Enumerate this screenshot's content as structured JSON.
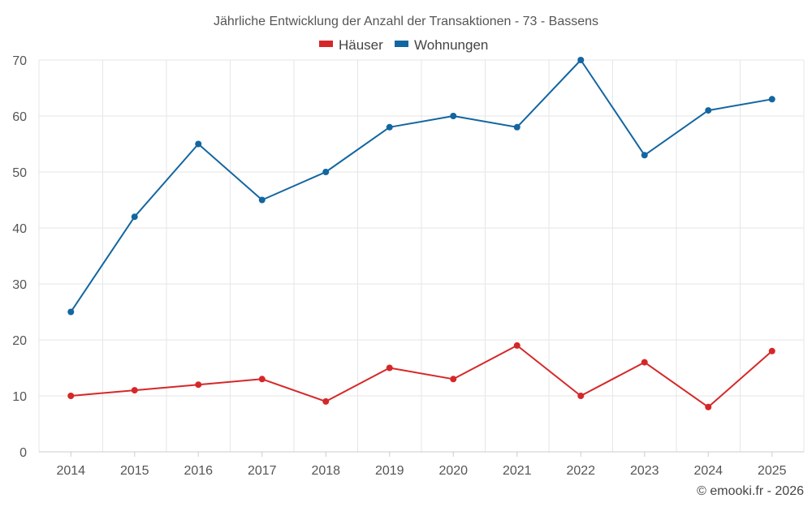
{
  "chart_data": {
    "type": "line",
    "title": "Jährliche Entwicklung der Anzahl der Transaktionen - 73 - Bassens",
    "categories": [
      "2014",
      "2015",
      "2016",
      "2017",
      "2018",
      "2019",
      "2020",
      "2021",
      "2022",
      "2023",
      "2024",
      "2025"
    ],
    "series": [
      {
        "name": "Häuser",
        "color": "#d62728",
        "values": [
          10,
          11,
          12,
          13,
          9,
          15,
          13,
          19,
          10,
          16,
          8,
          18
        ]
      },
      {
        "name": "Wohnungen",
        "color": "#1366a0",
        "values": [
          25,
          42,
          55,
          45,
          50,
          58,
          60,
          58,
          70,
          53,
          61,
          63
        ]
      }
    ],
    "ylim": [
      0,
      70
    ],
    "yticks": [
      0,
      10,
      20,
      30,
      40,
      50,
      60,
      70
    ],
    "xlabel": "",
    "ylabel": "",
    "grid": true,
    "legend": "top-center"
  },
  "credit": "© emooki.fr - 2026"
}
